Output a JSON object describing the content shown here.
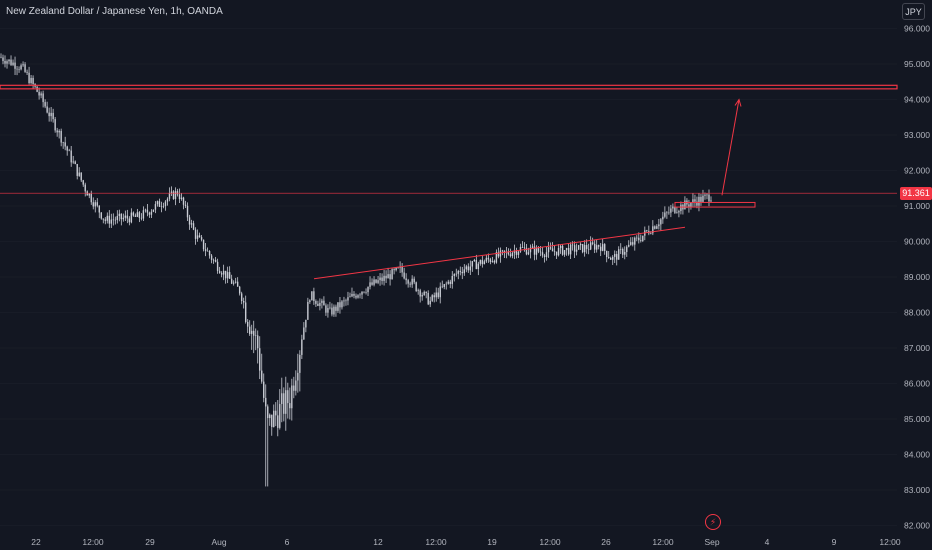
{
  "header": {
    "symbol_title": "New Zealand Dollar / Japanese Yen, 1h, OANDA",
    "currency": "JPY"
  },
  "last_price": "91.361",
  "colors": {
    "background": "#131722",
    "candles": "#c9ccd4",
    "annotation": "#f23645",
    "axis_text": "#b2b5be",
    "grid": "#1e222d"
  },
  "icons": {
    "flash": "lightning-icon"
  },
  "chart_data": {
    "type": "candlestick",
    "title": "New Zealand Dollar / Japanese Yen, 1h, OANDA",
    "ylim": [
      82.0,
      96.0
    ],
    "y_ticks": [
      "96.000",
      "95.000",
      "94.000",
      "93.000",
      "92.000",
      "91.000",
      "90.000",
      "89.000",
      "88.000",
      "87.000",
      "86.000",
      "85.000",
      "84.000",
      "83.000",
      "82.000"
    ],
    "x_ticks": [
      "22",
      "12:00",
      "29",
      "Aug",
      "6",
      "12",
      "12:00",
      "19",
      "12:00",
      "26",
      "12:00",
      "Sep",
      "4",
      "9",
      "12:00"
    ],
    "price_path": [
      [
        "22",
        95.2
      ],
      [
        "22",
        94.9
      ],
      [
        "22",
        94.1
      ],
      [
        "12:00",
        93.0
      ],
      [
        "12:00",
        91.5
      ],
      [
        "29",
        90.6
      ],
      [
        "29",
        90.7
      ],
      [
        "29",
        91.4
      ],
      [
        "29",
        90.2
      ],
      [
        "Aug",
        89.4
      ],
      [
        "Aug",
        88.6
      ],
      [
        "Aug",
        87.0
      ],
      [
        "Aug",
        84.8
      ],
      [
        "6",
        85.6
      ],
      [
        "6",
        88.5
      ],
      [
        "6",
        88.0
      ],
      [
        "12",
        88.6
      ],
      [
        "12",
        89.2
      ],
      [
        "12:00",
        88.3
      ],
      [
        "12:00",
        89.2
      ],
      [
        "19",
        89.6
      ],
      [
        "19",
        89.8
      ],
      [
        "12:00",
        89.7
      ],
      [
        "12:00",
        89.8
      ],
      [
        "26",
        89.9
      ],
      [
        "26",
        89.5
      ],
      [
        "12:00",
        90.1
      ],
      [
        "12:00",
        90.9
      ],
      [
        "Sep",
        91.3
      ]
    ],
    "resistance_zone": [
      94.3,
      94.4
    ],
    "current_price": 91.361,
    "rising_trendline": [
      [
        "6",
        88.95
      ],
      [
        "12:00",
        90.4
      ]
    ],
    "breakout_box": [
      90.97,
      91.1
    ],
    "target_arrow": [
      [
        "Sep",
        91.3
      ],
      [
        "4",
        94.0
      ]
    ]
  }
}
